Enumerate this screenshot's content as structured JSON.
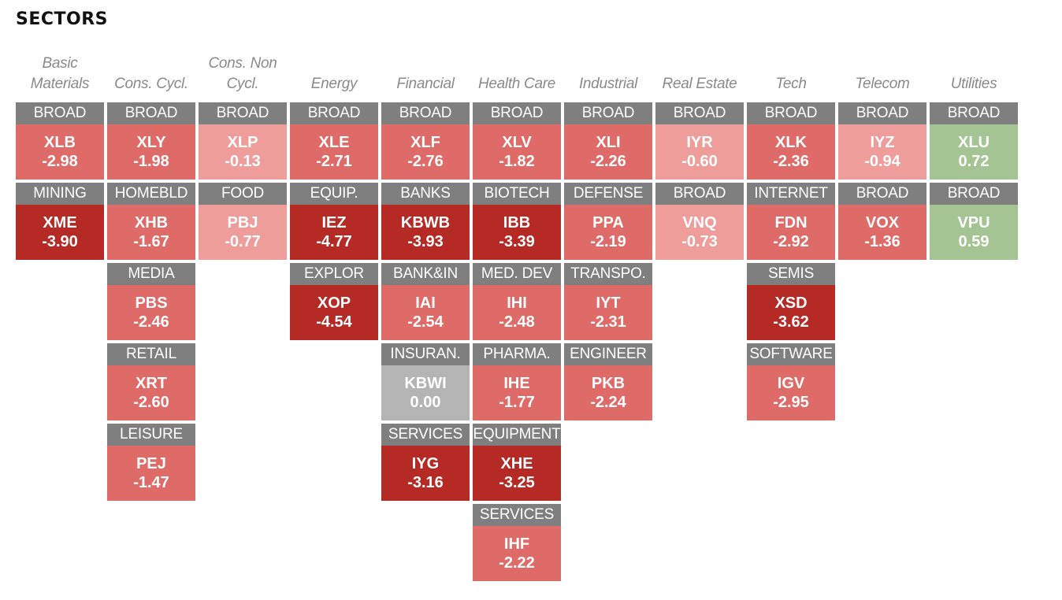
{
  "page": {
    "title": "SECTORS"
  },
  "colors": {
    "label_bg": "#7f7f7f",
    "strong_neg": "#b52a25",
    "mid_neg": "#de6b68",
    "light_neg": "#ee9d9b",
    "neutral": "#b4b4b4",
    "pos": "#a4c493"
  },
  "chart_data": {
    "type": "heatmap",
    "title": "SECTORS",
    "sectors": [
      {
        "name": "Basic Materials",
        "lines": [
          "Basic",
          "Materials"
        ],
        "tiles": [
          {
            "label": "BROAD",
            "ticker": "XLB",
            "value": -2.98
          },
          {
            "label": "MINING",
            "ticker": "XME",
            "value": -3.9
          }
        ]
      },
      {
        "name": "Cons. Cycl.",
        "lines": [
          "Cons. Cycl."
        ],
        "tiles": [
          {
            "label": "BROAD",
            "ticker": "XLY",
            "value": -1.98
          },
          {
            "label": "HOMEBLD",
            "ticker": "XHB",
            "value": -1.67
          },
          {
            "label": "MEDIA",
            "ticker": "PBS",
            "value": -2.46
          },
          {
            "label": "RETAIL",
            "ticker": "XRT",
            "value": -2.6
          },
          {
            "label": "LEISURE",
            "ticker": "PEJ",
            "value": -1.47
          }
        ]
      },
      {
        "name": "Cons. Non Cycl.",
        "lines": [
          "Cons. Non",
          "Cycl."
        ],
        "tiles": [
          {
            "label": "BROAD",
            "ticker": "XLP",
            "value": -0.13
          },
          {
            "label": "FOOD",
            "ticker": "PBJ",
            "value": -0.77
          }
        ]
      },
      {
        "name": "Energy",
        "lines": [
          "Energy"
        ],
        "tiles": [
          {
            "label": "BROAD",
            "ticker": "XLE",
            "value": -2.71
          },
          {
            "label": "EQUIP.",
            "ticker": "IEZ",
            "value": -4.77
          },
          {
            "label": "EXPLOR",
            "ticker": "XOP",
            "value": -4.54
          }
        ]
      },
      {
        "name": "Financial",
        "lines": [
          "Financial"
        ],
        "tiles": [
          {
            "label": "BROAD",
            "ticker": "XLF",
            "value": -2.76
          },
          {
            "label": "BANKS",
            "ticker": "KBWB",
            "value": -3.93
          },
          {
            "label": "BANK&IN",
            "ticker": "IAI",
            "value": -2.54
          },
          {
            "label": "INSURAN.",
            "ticker": "KBWI",
            "value": 0.0
          },
          {
            "label": "SERVICES",
            "ticker": "IYG",
            "value": -3.16
          }
        ]
      },
      {
        "name": "Health Care",
        "lines": [
          "Health Care"
        ],
        "tiles": [
          {
            "label": "BROAD",
            "ticker": "XLV",
            "value": -1.82
          },
          {
            "label": "BIOTECH",
            "ticker": "IBB",
            "value": -3.39
          },
          {
            "label": "MED. DEV",
            "ticker": "IHI",
            "value": -2.48
          },
          {
            "label": "PHARMA.",
            "ticker": "IHE",
            "value": -1.77
          },
          {
            "label": "EQUIPMENT",
            "ticker": "XHE",
            "value": -3.25
          },
          {
            "label": "SERVICES",
            "ticker": "IHF",
            "value": -2.22
          }
        ]
      },
      {
        "name": "Industrial",
        "lines": [
          "Industrial"
        ],
        "tiles": [
          {
            "label": "BROAD",
            "ticker": "XLI",
            "value": -2.26
          },
          {
            "label": "DEFENSE",
            "ticker": "PPA",
            "value": -2.19
          },
          {
            "label": "TRANSPO.",
            "ticker": "IYT",
            "value": -2.31
          },
          {
            "label": "ENGINEER",
            "ticker": "PKB",
            "value": -2.24
          }
        ]
      },
      {
        "name": "Real Estate",
        "lines": [
          "Real Estate"
        ],
        "tiles": [
          {
            "label": "BROAD",
            "ticker": "IYR",
            "value": -0.6
          },
          {
            "label": "BROAD",
            "ticker": "VNQ",
            "value": -0.73
          }
        ]
      },
      {
        "name": "Tech",
        "lines": [
          "Tech"
        ],
        "tiles": [
          {
            "label": "BROAD",
            "ticker": "XLK",
            "value": -2.36
          },
          {
            "label": "INTERNET",
            "ticker": "FDN",
            "value": -2.92
          },
          {
            "label": "SEMIS",
            "ticker": "XSD",
            "value": -3.62
          },
          {
            "label": "SOFTWARE",
            "ticker": "IGV",
            "value": -2.95
          }
        ]
      },
      {
        "name": "Telecom",
        "lines": [
          "Telecom"
        ],
        "tiles": [
          {
            "label": "BROAD",
            "ticker": "IYZ",
            "value": -0.94
          },
          {
            "label": "BROAD",
            "ticker": "VOX",
            "value": -1.36
          }
        ]
      },
      {
        "name": "Utilities",
        "lines": [
          "Utilities"
        ],
        "tiles": [
          {
            "label": "BROAD",
            "ticker": "XLU",
            "value": 0.72
          },
          {
            "label": "BROAD",
            "ticker": "VPU",
            "value": 0.59
          }
        ]
      }
    ]
  }
}
